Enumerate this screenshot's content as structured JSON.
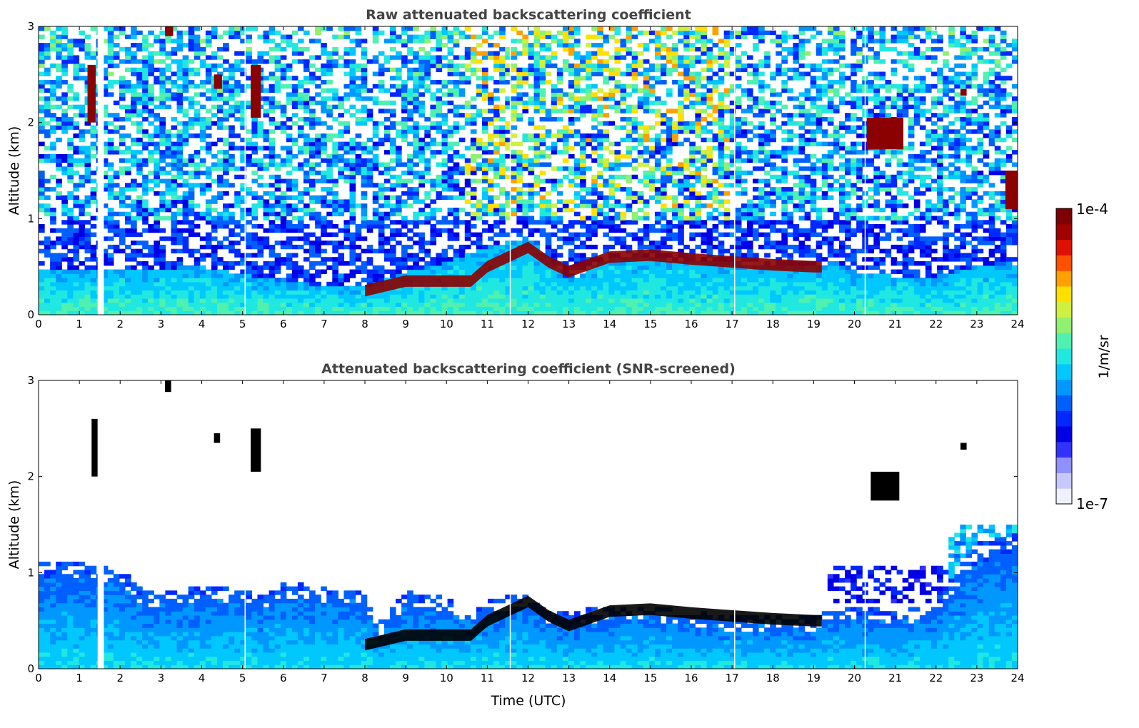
{
  "chart_data": [
    {
      "type": "heatmap",
      "title": "Raw attenuated backscattering coefficient",
      "xlabel": "",
      "ylabel": "Altitude (km)",
      "xlim": [
        0,
        24
      ],
      "ylim": [
        0,
        3
      ],
      "xticks": [
        "0",
        "1",
        "2",
        "3",
        "4",
        "5",
        "6",
        "7",
        "8",
        "9",
        "10",
        "11",
        "12",
        "13",
        "14",
        "15",
        "16",
        "17",
        "18",
        "19",
        "20",
        "21",
        "22",
        "23",
        "24"
      ],
      "yticks": [
        "0",
        "1",
        "2",
        "3"
      ],
      "boundary_layer_top_km": [
        [
          0,
          0.45
        ],
        [
          4,
          0.5
        ],
        [
          6,
          0.35
        ],
        [
          7,
          0.3
        ],
        [
          8,
          0.3
        ],
        [
          9,
          0.45
        ],
        [
          10,
          0.55
        ],
        [
          10.6,
          0.65
        ],
        [
          11,
          0.7
        ],
        [
          12,
          0.8
        ],
        [
          12.5,
          0.6
        ],
        [
          13,
          0.35
        ],
        [
          14,
          0.6
        ],
        [
          15,
          0.6
        ],
        [
          16,
          0.55
        ],
        [
          17,
          0.55
        ],
        [
          18,
          0.5
        ],
        [
          19,
          0.5
        ],
        [
          19.5,
          0.55
        ],
        [
          20,
          0.45
        ],
        [
          21,
          0.4
        ],
        [
          22,
          0.4
        ],
        [
          23,
          0.5
        ],
        [
          24,
          0.5
        ]
      ],
      "cloud_layer": [
        [
          8,
          0.25
        ],
        [
          9,
          0.35
        ],
        [
          10,
          0.35
        ],
        [
          10.6,
          0.35
        ],
        [
          11,
          0.5
        ],
        [
          12,
          0.7
        ],
        [
          12.5,
          0.55
        ],
        [
          13,
          0.45
        ],
        [
          14,
          0.6
        ],
        [
          15,
          0.62
        ],
        [
          16,
          0.58
        ],
        [
          17,
          0.55
        ],
        [
          18,
          0.52
        ],
        [
          19,
          0.5
        ],
        [
          19.2,
          0.5
        ]
      ],
      "features": [
        {
          "x0": 1.2,
          "x1": 1.4,
          "y0": 2.0,
          "y1": 2.6
        },
        {
          "x0": 3.1,
          "x1": 3.3,
          "y0": 2.9,
          "y1": 3.0
        },
        {
          "x0": 4.3,
          "x1": 4.5,
          "y0": 2.35,
          "y1": 2.5
        },
        {
          "x0": 5.2,
          "x1": 5.45,
          "y0": 2.05,
          "y1": 2.6
        },
        {
          "x0": 20.3,
          "x1": 21.2,
          "y0": 1.72,
          "y1": 2.05
        },
        {
          "x0": 22.6,
          "x1": 22.75,
          "y0": 2.28,
          "y1": 2.35
        },
        {
          "x0": 23.7,
          "x1": 24.0,
          "y0": 1.1,
          "y1": 1.5
        }
      ],
      "gaps": [
        1.45,
        5.05,
        11.55,
        17.05,
        20.25
      ],
      "missing_block": [
        1.45,
        1.6
      ]
    },
    {
      "type": "heatmap",
      "title": "Attenuated backscattering coefficient (SNR-screened)",
      "xlabel": "Time (UTC)",
      "ylabel": "Altitude (km)",
      "xlim": [
        0,
        24
      ],
      "ylim": [
        0,
        3
      ],
      "xticks": [
        "0",
        "1",
        "2",
        "3",
        "4",
        "5",
        "6",
        "7",
        "8",
        "9",
        "10",
        "11",
        "12",
        "13",
        "14",
        "15",
        "16",
        "17",
        "18",
        "19",
        "20",
        "21",
        "22",
        "23",
        "24"
      ],
      "yticks": [
        "0",
        "1",
        "2",
        "3"
      ],
      "signal_top_km": [
        [
          0,
          1.1
        ],
        [
          1,
          1.1
        ],
        [
          2,
          1.05
        ],
        [
          2.6,
          0.8
        ],
        [
          3,
          0.8
        ],
        [
          4,
          0.85
        ],
        [
          5,
          0.85
        ],
        [
          5.5,
          0.75
        ],
        [
          6,
          0.9
        ],
        [
          7,
          0.85
        ],
        [
          8,
          0.8
        ],
        [
          8.4,
          0.5
        ],
        [
          9,
          0.8
        ],
        [
          10,
          0.75
        ],
        [
          10.6,
          0.6
        ],
        [
          11,
          0.7
        ],
        [
          12,
          0.8
        ],
        [
          12.5,
          0.6
        ],
        [
          13,
          0.6
        ],
        [
          14,
          0.65
        ],
        [
          15,
          0.65
        ],
        [
          16,
          0.6
        ],
        [
          17,
          0.55
        ],
        [
          18,
          0.55
        ],
        [
          19,
          0.55
        ],
        [
          19.4,
          0.65
        ],
        [
          20,
          0.65
        ],
        [
          21,
          0.6
        ],
        [
          22,
          0.7
        ],
        [
          23,
          1.3
        ],
        [
          24,
          1.4
        ]
      ],
      "cloud_layer": [
        [
          8,
          0.25
        ],
        [
          9,
          0.35
        ],
        [
          10,
          0.35
        ],
        [
          10.6,
          0.35
        ],
        [
          11,
          0.5
        ],
        [
          12,
          0.7
        ],
        [
          12.5,
          0.55
        ],
        [
          13,
          0.45
        ],
        [
          14,
          0.6
        ],
        [
          15,
          0.62
        ],
        [
          16,
          0.58
        ],
        [
          17,
          0.55
        ],
        [
          18,
          0.52
        ],
        [
          19,
          0.5
        ],
        [
          19.2,
          0.5
        ]
      ],
      "features": [
        {
          "x0": 1.3,
          "x1": 1.45,
          "y0": 2.0,
          "y1": 2.6
        },
        {
          "x0": 3.1,
          "x1": 3.25,
          "y0": 2.88,
          "y1": 3.0
        },
        {
          "x0": 4.3,
          "x1": 4.45,
          "y0": 2.35,
          "y1": 2.45
        },
        {
          "x0": 5.2,
          "x1": 5.45,
          "y0": 2.05,
          "y1": 2.5
        },
        {
          "x0": 20.4,
          "x1": 21.1,
          "y0": 1.75,
          "y1": 2.05
        },
        {
          "x0": 22.6,
          "x1": 22.75,
          "y0": 2.28,
          "y1": 2.35
        }
      ],
      "gaps": [
        1.45,
        5.05,
        11.55,
        17.05,
        20.25
      ],
      "missing_block": [
        1.45,
        1.6
      ]
    }
  ],
  "colorbar": {
    "min_label": "1e-7",
    "max_label": "1e-4",
    "unit_label": "1/m/sr",
    "colors": [
      "#f0f0ff",
      "#c8c8ff",
      "#9090ff",
      "#3232ff",
      "#0000e6",
      "#0028ff",
      "#0060ff",
      "#0098ff",
      "#00c8ff",
      "#20e8e0",
      "#50f0b0",
      "#90f070",
      "#d0f040",
      "#ffe000",
      "#ffa000",
      "#ff5000",
      "#e01000",
      "#a00000",
      "#7f0000"
    ]
  },
  "colors": {
    "background": "#ffffff",
    "title_color": "#444444",
    "cloud": "#8b0000",
    "cloud_screened": "#000000"
  }
}
